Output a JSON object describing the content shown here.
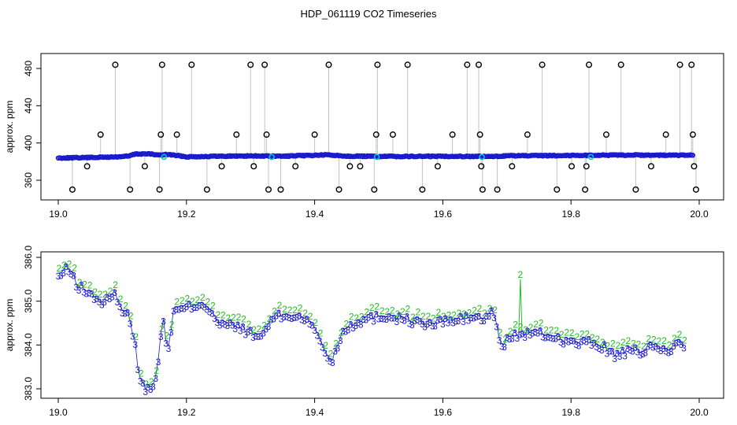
{
  "title": "HDP_061119  CO2 Timeseries",
  "colors": {
    "series2": "#22bb22",
    "series3": "#1a1acc",
    "line": "#1a1acc",
    "spike": "#888888",
    "marker": "#000000",
    "cyan": "#00cccc"
  },
  "chart_data": [
    {
      "type": "scatter",
      "ylabel": "approx. ppm",
      "xlim": [
        19.0,
        20.0
      ],
      "ylim": [
        340,
        490
      ],
      "xticks": [
        "19.0",
        "19.2",
        "19.4",
        "19.6",
        "19.8",
        "20.0"
      ],
      "yticks": [
        "360",
        "400",
        "440",
        "480"
      ],
      "baseline": [
        [
          19.0,
          385.6
        ],
        [
          19.05,
          385.3
        ],
        [
          19.09,
          385.0
        ],
        [
          19.11,
          384.5
        ],
        [
          19.12,
          383.3
        ],
        [
          19.14,
          383.2
        ],
        [
          19.16,
          384.0
        ],
        [
          19.17,
          383.5
        ],
        [
          19.2,
          384.9
        ],
        [
          19.25,
          384.6
        ],
        [
          19.3,
          384.4
        ],
        [
          19.35,
          384.6
        ],
        [
          19.42,
          383.8
        ],
        [
          19.45,
          384.5
        ],
        [
          19.5,
          384.7
        ],
        [
          19.55,
          384.7
        ],
        [
          19.6,
          384.6
        ],
        [
          19.66,
          384.7
        ],
        [
          19.68,
          384.8
        ],
        [
          19.7,
          384.3
        ],
        [
          19.75,
          384.3
        ],
        [
          19.8,
          384.1
        ],
        [
          19.85,
          384.0
        ],
        [
          19.9,
          383.9
        ],
        [
          19.95,
          384.0
        ],
        [
          19.99,
          384.0
        ]
      ],
      "outliers": [
        {
          "x": 19.022,
          "y": 350
        },
        {
          "x": 19.045,
          "y": 375
        },
        {
          "x": 19.066,
          "y": 409
        },
        {
          "x": 19.089,
          "y": 484
        },
        {
          "x": 19.112,
          "y": 350
        },
        {
          "x": 19.135,
          "y": 375
        },
        {
          "x": 19.158,
          "y": 350
        },
        {
          "x": 19.16,
          "y": 409
        },
        {
          "x": 19.162,
          "y": 484
        },
        {
          "x": 19.185,
          "y": 409
        },
        {
          "x": 19.208,
          "y": 484
        },
        {
          "x": 19.232,
          "y": 350
        },
        {
          "x": 19.255,
          "y": 375
        },
        {
          "x": 19.278,
          "y": 409
        },
        {
          "x": 19.3,
          "y": 484
        },
        {
          "x": 19.305,
          "y": 375
        },
        {
          "x": 19.322,
          "y": 484
        },
        {
          "x": 19.325,
          "y": 409
        },
        {
          "x": 19.328,
          "y": 350
        },
        {
          "x": 19.347,
          "y": 350
        },
        {
          "x": 19.37,
          "y": 375
        },
        {
          "x": 19.4,
          "y": 409
        },
        {
          "x": 19.422,
          "y": 484
        },
        {
          "x": 19.438,
          "y": 350
        },
        {
          "x": 19.455,
          "y": 375
        },
        {
          "x": 19.471,
          "y": 375
        },
        {
          "x": 19.493,
          "y": 350
        },
        {
          "x": 19.496,
          "y": 409
        },
        {
          "x": 19.498,
          "y": 484
        },
        {
          "x": 19.522,
          "y": 409
        },
        {
          "x": 19.545,
          "y": 484
        },
        {
          "x": 19.568,
          "y": 350
        },
        {
          "x": 19.592,
          "y": 375
        },
        {
          "x": 19.615,
          "y": 409
        },
        {
          "x": 19.638,
          "y": 484
        },
        {
          "x": 19.656,
          "y": 484
        },
        {
          "x": 19.658,
          "y": 409
        },
        {
          "x": 19.66,
          "y": 375
        },
        {
          "x": 19.662,
          "y": 350
        },
        {
          "x": 19.685,
          "y": 350
        },
        {
          "x": 19.708,
          "y": 375
        },
        {
          "x": 19.732,
          "y": 409
        },
        {
          "x": 19.755,
          "y": 484
        },
        {
          "x": 19.778,
          "y": 350
        },
        {
          "x": 19.801,
          "y": 375
        },
        {
          "x": 19.822,
          "y": 350
        },
        {
          "x": 19.824,
          "y": 375
        },
        {
          "x": 19.828,
          "y": 484
        },
        {
          "x": 19.855,
          "y": 409
        },
        {
          "x": 19.878,
          "y": 484
        },
        {
          "x": 19.901,
          "y": 350
        },
        {
          "x": 19.925,
          "y": 375
        },
        {
          "x": 19.948,
          "y": 409
        },
        {
          "x": 19.97,
          "y": 484
        },
        {
          "x": 19.988,
          "y": 484
        },
        {
          "x": 19.99,
          "y": 409
        },
        {
          "x": 19.992,
          "y": 375
        },
        {
          "x": 19.995,
          "y": 350
        }
      ],
      "cyan_points": [
        19.165,
        19.333,
        19.497,
        19.661,
        19.831
      ]
    },
    {
      "type": "scatter",
      "ylabel": "approx. ppm",
      "xlim": [
        19.0,
        20.0
      ],
      "ylim": [
        383.0,
        386.0
      ],
      "xticks": [
        "19.0",
        "19.2",
        "19.4",
        "19.6",
        "19.8",
        "20.0"
      ],
      "yticks": [
        "383.0",
        "384.0",
        "385.0",
        "386.0"
      ],
      "series": [
        {
          "symbol": "2",
          "color": "series2"
        },
        {
          "symbol": "3",
          "color": "series3"
        }
      ],
      "profile": [
        [
          19.0,
          385.6
        ],
        [
          19.015,
          385.8
        ],
        [
          19.03,
          385.4
        ],
        [
          19.05,
          385.2
        ],
        [
          19.07,
          385.0
        ],
        [
          19.09,
          385.2
        ],
        [
          19.1,
          384.8
        ],
        [
          19.11,
          384.7
        ],
        [
          19.12,
          384.1
        ],
        [
          19.125,
          383.4
        ],
        [
          19.135,
          383.0
        ],
        [
          19.145,
          383.1
        ],
        [
          19.155,
          383.4
        ],
        [
          19.16,
          384.3
        ],
        [
          19.165,
          384.7
        ],
        [
          19.17,
          383.7
        ],
        [
          19.175,
          384.3
        ],
        [
          19.18,
          384.8
        ],
        [
          19.2,
          384.9
        ],
        [
          19.225,
          385.0
        ],
        [
          19.24,
          384.8
        ],
        [
          19.25,
          384.5
        ],
        [
          19.27,
          384.5
        ],
        [
          19.29,
          384.4
        ],
        [
          19.31,
          384.2
        ],
        [
          19.325,
          384.4
        ],
        [
          19.335,
          384.7
        ],
        [
          19.36,
          384.7
        ],
        [
          19.38,
          384.7
        ],
        [
          19.4,
          384.4
        ],
        [
          19.41,
          384.1
        ],
        [
          19.425,
          383.6
        ],
        [
          19.435,
          384.0
        ],
        [
          19.445,
          384.4
        ],
        [
          19.47,
          384.6
        ],
        [
          19.5,
          384.7
        ],
        [
          19.52,
          384.7
        ],
        [
          19.55,
          384.6
        ],
        [
          19.58,
          384.5
        ],
        [
          19.6,
          384.6
        ],
        [
          19.62,
          384.6
        ],
        [
          19.65,
          384.7
        ],
        [
          19.665,
          384.6
        ],
        [
          19.675,
          384.8
        ],
        [
          19.685,
          384.5
        ],
        [
          19.69,
          383.9
        ],
        [
          19.7,
          384.2
        ],
        [
          19.72,
          384.3
        ],
        [
          19.75,
          384.3
        ],
        [
          19.78,
          384.2
        ],
        [
          19.8,
          384.1
        ],
        [
          19.83,
          384.1
        ],
        [
          19.85,
          384.0
        ],
        [
          19.87,
          383.8
        ],
        [
          19.89,
          383.9
        ],
        [
          19.91,
          383.9
        ],
        [
          19.93,
          384.0
        ],
        [
          19.95,
          383.9
        ],
        [
          19.97,
          384.1
        ],
        [
          19.98,
          384.0
        ]
      ],
      "spike": {
        "x": 19.721,
        "y": 385.5
      }
    }
  ]
}
